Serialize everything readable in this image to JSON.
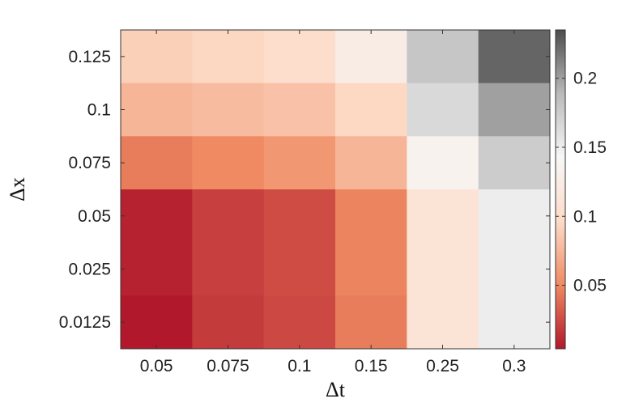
{
  "chart_data": {
    "type": "heatmap",
    "xlabel": "Δt",
    "ylabel": "Δx",
    "x_categories": [
      "0.05",
      "0.075",
      "0.1",
      "0.15",
      "0.25",
      "0.3"
    ],
    "y_categories": [
      "0.125",
      "0.1",
      "0.075",
      "0.05",
      "0.025",
      "0.0125"
    ],
    "values": [
      [
        0.09,
        0.094,
        0.1,
        0.125,
        0.18,
        0.225
      ],
      [
        0.075,
        0.078,
        0.082,
        0.095,
        0.165,
        0.2
      ],
      [
        0.045,
        0.05,
        0.058,
        0.075,
        0.135,
        0.175
      ],
      [
        0.008,
        0.02,
        0.025,
        0.048,
        0.11,
        0.15
      ],
      [
        0.008,
        0.02,
        0.025,
        0.048,
        0.11,
        0.15
      ],
      [
        0.004,
        0.018,
        0.024,
        0.045,
        0.11,
        0.15
      ]
    ],
    "colorbar": {
      "min": 0.004,
      "max": 0.235,
      "ticks": [
        "0.05",
        "0.1",
        "0.15",
        "0.2"
      ],
      "colormap": [
        "#b2182b",
        "#ef8a62",
        "#fddbc7",
        "#f7f7f7",
        "#bababa",
        "#4d4d4d"
      ]
    },
    "grid": false,
    "legend": "colorbar-right"
  }
}
